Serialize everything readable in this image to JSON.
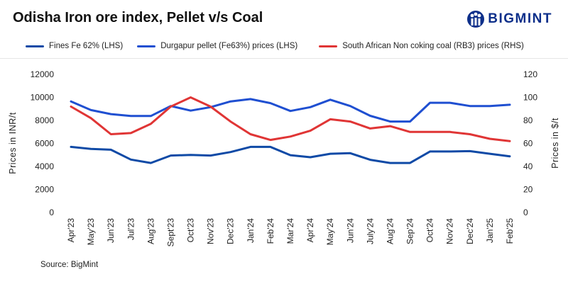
{
  "header": {
    "title": "Odisha Iron ore index, Pellet v/s Coal",
    "brand": "BIGMINT",
    "brand_color": "#0d2f8a"
  },
  "footer": {
    "source": "Source: BigMint"
  },
  "chart_data": {
    "type": "line",
    "title": "Odisha Iron ore index, Pellet v/s Coal",
    "categories": [
      "Apr'23",
      "May'23",
      "Jun'23",
      "Jul'23",
      "Aug'23",
      "Sept'23",
      "Oct'23",
      "Nov'23",
      "Dec'23",
      "Jan'24",
      "Feb'24",
      "Mar'24",
      "Apr'24",
      "May'24",
      "Jun'24",
      "July'24",
      "Aug'24",
      "Sep'24",
      "Oct'24",
      "Nov'24",
      "Dec'24",
      "Jan'25",
      "Feb'25"
    ],
    "ylabel": "Prices in INR/t",
    "y2label": "Prices in $/t",
    "ylim": [
      0,
      12000
    ],
    "y2lim": [
      0,
      120
    ],
    "yticks": [
      0,
      2000,
      4000,
      6000,
      8000,
      10000,
      12000
    ],
    "y2ticks": [
      0,
      20,
      40,
      60,
      80,
      100,
      120
    ],
    "grid": false,
    "legend_position": "top",
    "series": [
      {
        "name": "Fines Fe 62% (LHS)",
        "axis": "left",
        "color": "#0f4aa6",
        "values": [
          5700,
          5520,
          5450,
          4600,
          4300,
          4950,
          5000,
          4950,
          5250,
          5700,
          5700,
          4980,
          4800,
          5100,
          5150,
          4580,
          4300,
          4300,
          5300,
          5300,
          5330,
          5100,
          4880
        ]
      },
      {
        "name": "Durgapur pellet (Fe63%) prices (LHS)",
        "axis": "left",
        "color": "#1f4fd1",
        "values": [
          9650,
          8900,
          8550,
          8380,
          8380,
          9250,
          8850,
          9150,
          9650,
          9850,
          9500,
          8820,
          9150,
          9800,
          9250,
          8400,
          7900,
          7900,
          9530,
          9530,
          9250,
          9250,
          9360
        ]
      },
      {
        "name": "South African Non coking coal (RB3) prices (RHS)",
        "axis": "right",
        "color": "#e03535",
        "values": [
          92,
          82,
          68,
          69,
          77,
          92,
          100,
          92,
          79,
          68,
          63,
          66,
          71,
          81,
          79,
          73,
          75,
          70,
          70,
          70,
          68,
          64,
          62
        ]
      }
    ]
  }
}
